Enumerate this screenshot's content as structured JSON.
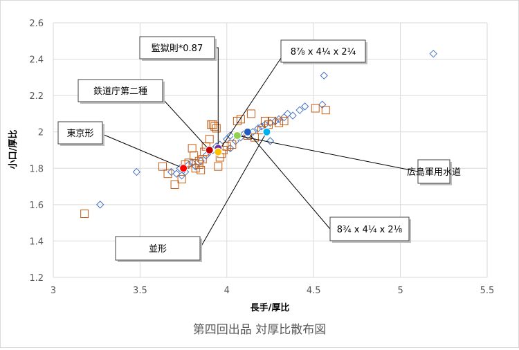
{
  "chart_data": {
    "type": "scatter",
    "caption": "第四回出品 対厚比散布図",
    "xlabel": "長手/厚比",
    "ylabel": "小口/厚比",
    "xlim": [
      3,
      5.5
    ],
    "ylim": [
      1.2,
      2.6
    ],
    "xticks": [
      "3",
      "3.5",
      "4",
      "4.5",
      "5",
      "5.5"
    ],
    "yticks": [
      "1.2",
      "1.4",
      "1.6",
      "1.8",
      "2",
      "2.2",
      "2.4",
      "2.6"
    ],
    "grid": true,
    "series": [
      {
        "marker": "diamond",
        "color": "#4472c4",
        "points": [
          [
            3.27,
            1.6
          ],
          [
            3.48,
            1.78
          ],
          [
            3.68,
            1.78
          ],
          [
            3.71,
            1.77
          ],
          [
            3.73,
            1.8
          ],
          [
            3.75,
            1.79
          ],
          [
            3.78,
            1.82
          ],
          [
            3.8,
            1.83
          ],
          [
            3.82,
            1.81
          ],
          [
            3.85,
            1.84
          ],
          [
            3.88,
            1.87
          ],
          [
            3.9,
            1.89
          ],
          [
            3.92,
            1.9
          ],
          [
            3.94,
            1.92
          ],
          [
            3.96,
            1.93
          ],
          [
            4.0,
            1.96
          ],
          [
            4.02,
            1.98
          ],
          [
            4.05,
            1.95
          ],
          [
            4.08,
            1.97
          ],
          [
            4.1,
            1.99
          ],
          [
            4.12,
            1.98
          ],
          [
            4.15,
            2.0
          ],
          [
            4.18,
            2.02
          ],
          [
            4.2,
            2.03
          ],
          [
            4.22,
            2.04
          ],
          [
            4.25,
            2.05
          ],
          [
            4.28,
            2.06
          ],
          [
            4.3,
            2.07
          ],
          [
            4.33,
            2.08
          ],
          [
            4.35,
            2.1
          ],
          [
            4.38,
            2.09
          ],
          [
            4.42,
            2.12
          ],
          [
            4.45,
            2.14
          ],
          [
            4.55,
            2.15
          ],
          [
            4.56,
            2.31
          ],
          [
            5.19,
            2.43
          ],
          [
            4.25,
            1.95
          ],
          [
            4.02,
            1.91
          ],
          [
            3.74,
            1.76
          ],
          [
            3.76,
            1.78
          ]
        ]
      },
      {
        "marker": "square",
        "color": "#c55a11",
        "points": [
          [
            3.18,
            1.55
          ],
          [
            3.63,
            1.81
          ],
          [
            3.66,
            1.77
          ],
          [
            3.7,
            1.71
          ],
          [
            3.74,
            1.74
          ],
          [
            3.76,
            1.82
          ],
          [
            3.78,
            1.83
          ],
          [
            3.8,
            1.91
          ],
          [
            3.81,
            1.87
          ],
          [
            3.82,
            1.8
          ],
          [
            3.84,
            1.82
          ],
          [
            3.85,
            1.79
          ],
          [
            3.86,
            1.85
          ],
          [
            3.87,
            1.89
          ],
          [
            3.88,
            1.92
          ],
          [
            3.9,
            1.96
          ],
          [
            3.91,
            2.04
          ],
          [
            3.92,
            2.04
          ],
          [
            3.93,
            2.03
          ],
          [
            3.94,
            2.02
          ],
          [
            3.95,
            1.81
          ],
          [
            3.96,
            1.86
          ],
          [
            3.97,
            1.88
          ],
          [
            3.98,
            1.9
          ],
          [
            4.0,
            1.92
          ],
          [
            4.03,
            1.93
          ],
          [
            4.06,
            2.06
          ],
          [
            4.08,
            2.07
          ],
          [
            4.12,
            1.98
          ],
          [
            4.14,
            2.1
          ],
          [
            4.16,
            1.97
          ],
          [
            4.2,
            2.01
          ],
          [
            4.22,
            2.06
          ],
          [
            4.24,
            2.04
          ],
          [
            4.26,
            2.06
          ],
          [
            4.3,
            2.05
          ],
          [
            4.33,
            2.06
          ],
          [
            4.51,
            2.13
          ],
          [
            4.57,
            2.12
          ],
          [
            3.84,
            1.84
          ]
        ]
      }
    ],
    "highlights": [
      {
        "label": "東京形",
        "x": 3.75,
        "y": 1.8,
        "color": "#ff0000"
      },
      {
        "label": "鉄道庁第二種",
        "x": 3.9,
        "y": 1.9,
        "color": "#c00000"
      },
      {
        "label": "監獄則*0.87",
        "x": 3.95,
        "y": 1.91,
        "color": "#7030a0"
      },
      {
        "label": "8⅞ x 4¼ x 2¼",
        "x": 3.95,
        "y": 1.89,
        "color": "#ffc000"
      },
      {
        "label": "広島軍用水道",
        "x": 4.06,
        "y": 1.98,
        "color": "#92d050"
      },
      {
        "label": "8¾ x 4¼ x 2⅛",
        "x": 4.12,
        "y": 2.0,
        "color": "#1f5fbf"
      },
      {
        "label": "並形",
        "x": 4.23,
        "y": 2.0,
        "color": "#00b0f0"
      }
    ]
  }
}
